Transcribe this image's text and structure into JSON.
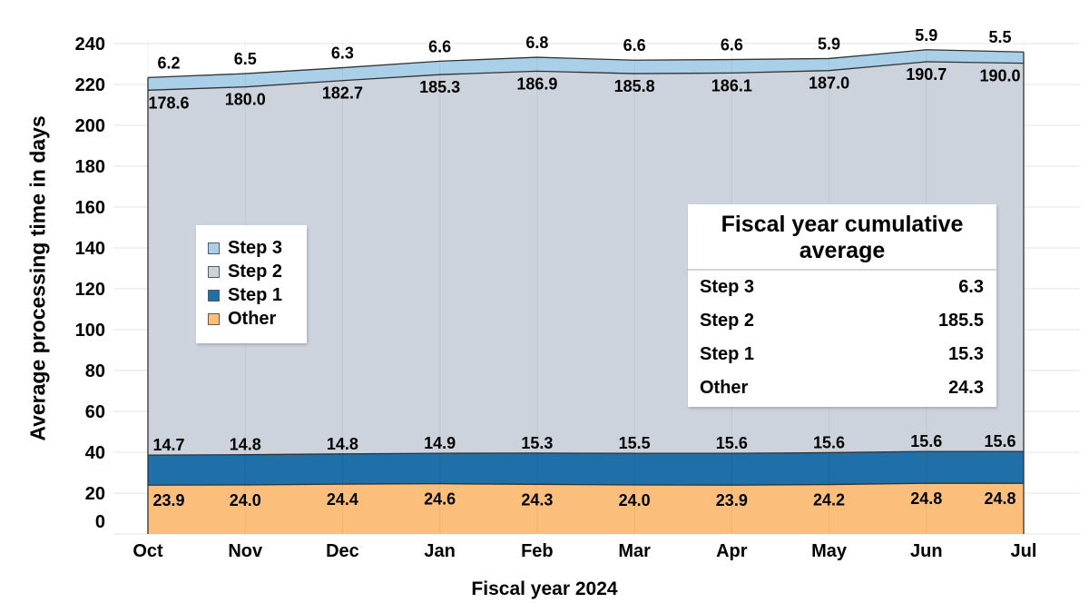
{
  "chart_data": {
    "type": "area",
    "stacked": true,
    "title": "",
    "xlabel": "Fiscal year 2024",
    "ylabel": "Average processing time in days",
    "categories": [
      "Oct",
      "Nov",
      "Dec",
      "Jan",
      "Feb",
      "Mar",
      "Apr",
      "May",
      "Jun",
      "Jul"
    ],
    "ylim": [
      0,
      240
    ],
    "yticks": [
      0,
      20,
      40,
      60,
      80,
      100,
      120,
      140,
      160,
      180,
      200,
      220,
      240
    ],
    "grid": true,
    "legend_position": "inside-left",
    "series": [
      {
        "name": "Other",
        "color": "#fcbe7b",
        "values": [
          23.9,
          24.0,
          24.4,
          24.6,
          24.3,
          24.0,
          23.9,
          24.2,
          24.8,
          24.8
        ]
      },
      {
        "name": "Step 1",
        "color": "#1f6fa8",
        "values": [
          14.7,
          14.8,
          14.8,
          14.9,
          15.3,
          15.5,
          15.6,
          15.6,
          15.6,
          15.6
        ]
      },
      {
        "name": "Step 2",
        "color": "#cdd3dc",
        "values": [
          178.6,
          180.0,
          182.7,
          185.3,
          186.9,
          185.8,
          186.1,
          187.0,
          190.7,
          190.0
        ]
      },
      {
        "name": "Step 3",
        "color": "#a9d0e8",
        "values": [
          6.2,
          6.5,
          6.3,
          6.6,
          6.8,
          6.6,
          6.6,
          5.9,
          5.9,
          5.5
        ]
      }
    ]
  },
  "legend": {
    "items": [
      {
        "label": "Step 3",
        "color": "#a9d0e8"
      },
      {
        "label": "Step 2",
        "color": "#cdd3dc"
      },
      {
        "label": "Step 1",
        "color": "#1f6fa8"
      },
      {
        "label": "Other",
        "color": "#fcbe7b"
      }
    ]
  },
  "summary_table": {
    "title": "Fiscal year cumulative average",
    "rows": [
      {
        "label": "Step 3",
        "value": "6.3"
      },
      {
        "label": "Step 2",
        "value": "185.5"
      },
      {
        "label": "Step 1",
        "value": "15.3"
      },
      {
        "label": "Other",
        "value": "24.3"
      }
    ]
  }
}
